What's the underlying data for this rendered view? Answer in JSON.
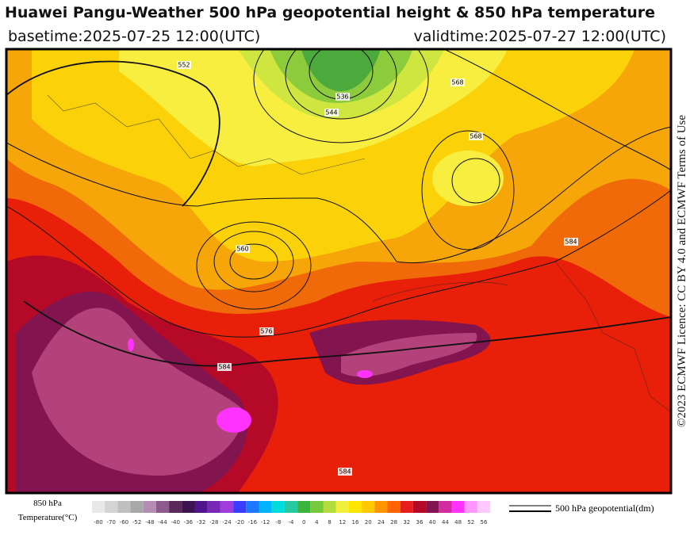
{
  "header": {
    "title": "Huawei Pangu-Weather 500 hPa geopotential height & 850 hPa temperature",
    "basetime": "basetime:2025-07-25 12:00(UTC)",
    "validtime": "validtime:2025-07-27 12:00(UTC)"
  },
  "license": "©2023 ECMWF Licence: CC BY 4.0 and ECMWF Terms of Use",
  "map": {
    "contour_labels": [
      "552",
      "536",
      "544",
      "568",
      "568",
      "560",
      "576",
      "584",
      "584",
      "584"
    ]
  },
  "colorbar": {
    "label_line1": "850 hPa",
    "label_line2": "Temperature(°C)",
    "ticks": [
      -80,
      -70,
      -60,
      -52,
      -48,
      -44,
      -40,
      -36,
      -32,
      -28,
      -24,
      -20,
      -16,
      -12,
      -8,
      -4,
      0,
      4,
      8,
      12,
      16,
      20,
      24,
      28,
      32,
      36,
      40,
      44,
      48,
      52,
      56
    ],
    "colors": [
      "#e8e8e8",
      "#d4d4d4",
      "#c0c0c0",
      "#a8a8a8",
      "#b48cb4",
      "#8c5a8c",
      "#5a2a5a",
      "#3c1450",
      "#50148c",
      "#7828b4",
      "#a03cdc",
      "#3c3cff",
      "#1e78ff",
      "#00b4ff",
      "#00dcdc",
      "#28c8a0",
      "#3cb43c",
      "#78c83c",
      "#b4dc3c",
      "#f0f03c",
      "#ffe600",
      "#ffc800",
      "#ff9600",
      "#ff6400",
      "#e61e1e",
      "#b40a28",
      "#821450",
      "#d22ca0",
      "#ff32ff",
      "#ff96ff",
      "#ffc8ff"
    ]
  },
  "legend": {
    "label": "500 hPa geopotential(dm)"
  }
}
